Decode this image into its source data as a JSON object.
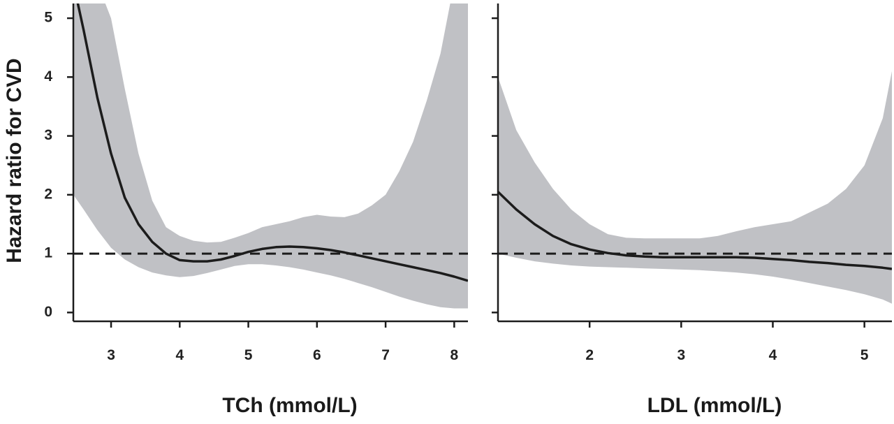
{
  "colors": {
    "band": "#c0c1c5",
    "line": "#1c1c1c",
    "reference": "#1c1c1c",
    "axis": "#1c1c1c"
  },
  "ylabel": "Hazard ratio for CVD",
  "chart_data": [
    {
      "type": "line",
      "panel": "left",
      "xlabel": "TCh (mmol/L)",
      "ylabel": "Hazard ratio for CVD",
      "xlim": [
        2.45,
        8.2
      ],
      "ylim": [
        -0.15,
        5.25
      ],
      "xticks": [
        3,
        4,
        5,
        6,
        7,
        8
      ],
      "yticks": [
        0,
        1,
        2,
        3,
        4,
        5
      ],
      "reference_line": 1,
      "series": [
        {
          "x": [
            2.45,
            2.6,
            2.8,
            3.0,
            3.2,
            3.4,
            3.6,
            3.8,
            4.0,
            4.2,
            4.4,
            4.6,
            4.8,
            5.0,
            5.2,
            5.4,
            5.6,
            5.8,
            6.0,
            6.2,
            6.4,
            6.6,
            6.8,
            7.0,
            7.2,
            7.4,
            7.6,
            7.8,
            8.0,
            8.2
          ],
          "y": [
            5.6,
            4.8,
            3.65,
            2.7,
            1.95,
            1.5,
            1.2,
            1.0,
            0.89,
            0.87,
            0.87,
            0.9,
            0.96,
            1.03,
            1.08,
            1.11,
            1.12,
            1.11,
            1.09,
            1.06,
            1.02,
            0.97,
            0.92,
            0.87,
            0.82,
            0.77,
            0.72,
            0.67,
            0.61,
            0.54
          ]
        }
      ],
      "ci_band": {
        "x": [
          2.45,
          2.6,
          2.8,
          3.0,
          3.2,
          3.4,
          3.6,
          3.8,
          4.0,
          4.2,
          4.4,
          4.6,
          4.8,
          5.0,
          5.2,
          5.4,
          5.6,
          5.8,
          6.0,
          6.2,
          6.4,
          6.6,
          6.8,
          7.0,
          7.2,
          7.4,
          7.6,
          7.8,
          8.0,
          8.2
        ],
        "lower": [
          2.0,
          1.75,
          1.4,
          1.1,
          0.9,
          0.77,
          0.68,
          0.63,
          0.6,
          0.62,
          0.67,
          0.73,
          0.79,
          0.82,
          0.82,
          0.8,
          0.77,
          0.73,
          0.68,
          0.63,
          0.57,
          0.5,
          0.43,
          0.35,
          0.27,
          0.2,
          0.14,
          0.09,
          0.07,
          0.07
        ],
        "upper": [
          5.6,
          5.6,
          5.6,
          5.0,
          3.8,
          2.7,
          1.9,
          1.45,
          1.3,
          1.22,
          1.19,
          1.2,
          1.27,
          1.35,
          1.45,
          1.5,
          1.55,
          1.62,
          1.66,
          1.63,
          1.62,
          1.68,
          1.82,
          2.0,
          2.4,
          2.9,
          3.6,
          4.4,
          5.6,
          5.6
        ]
      }
    },
    {
      "type": "line",
      "panel": "right",
      "xlabel": "LDL (mmol/L)",
      "ylabel": "",
      "xlim": [
        1.0,
        5.3
      ],
      "ylim": [
        -0.15,
        5.25
      ],
      "xticks": [
        2,
        3,
        4,
        5
      ],
      "yticks": [
        0,
        1,
        2,
        3,
        4,
        5
      ],
      "reference_line": 1,
      "series": [
        {
          "x": [
            1.0,
            1.2,
            1.4,
            1.6,
            1.8,
            2.0,
            2.2,
            2.4,
            2.6,
            2.8,
            3.0,
            3.2,
            3.4,
            3.6,
            3.8,
            4.0,
            4.2,
            4.4,
            4.6,
            4.8,
            5.0,
            5.2,
            5.3
          ],
          "y": [
            2.05,
            1.75,
            1.5,
            1.3,
            1.16,
            1.07,
            1.01,
            0.97,
            0.95,
            0.94,
            0.94,
            0.94,
            0.94,
            0.94,
            0.93,
            0.91,
            0.89,
            0.86,
            0.84,
            0.81,
            0.79,
            0.76,
            0.74
          ]
        }
      ],
      "ci_band": {
        "x": [
          1.0,
          1.2,
          1.4,
          1.6,
          1.8,
          2.0,
          2.2,
          2.4,
          2.6,
          2.8,
          3.0,
          3.2,
          3.4,
          3.6,
          3.8,
          4.0,
          4.2,
          4.4,
          4.6,
          4.8,
          5.0,
          5.2,
          5.3
        ],
        "lower": [
          1.0,
          0.93,
          0.87,
          0.83,
          0.8,
          0.78,
          0.77,
          0.76,
          0.75,
          0.74,
          0.73,
          0.72,
          0.7,
          0.68,
          0.65,
          0.61,
          0.56,
          0.5,
          0.44,
          0.38,
          0.31,
          0.22,
          0.15
        ],
        "upper": [
          4.0,
          3.1,
          2.55,
          2.1,
          1.75,
          1.5,
          1.33,
          1.27,
          1.26,
          1.26,
          1.26,
          1.26,
          1.3,
          1.38,
          1.45,
          1.5,
          1.55,
          1.7,
          1.85,
          2.1,
          2.5,
          3.3,
          4.1
        ]
      }
    }
  ]
}
